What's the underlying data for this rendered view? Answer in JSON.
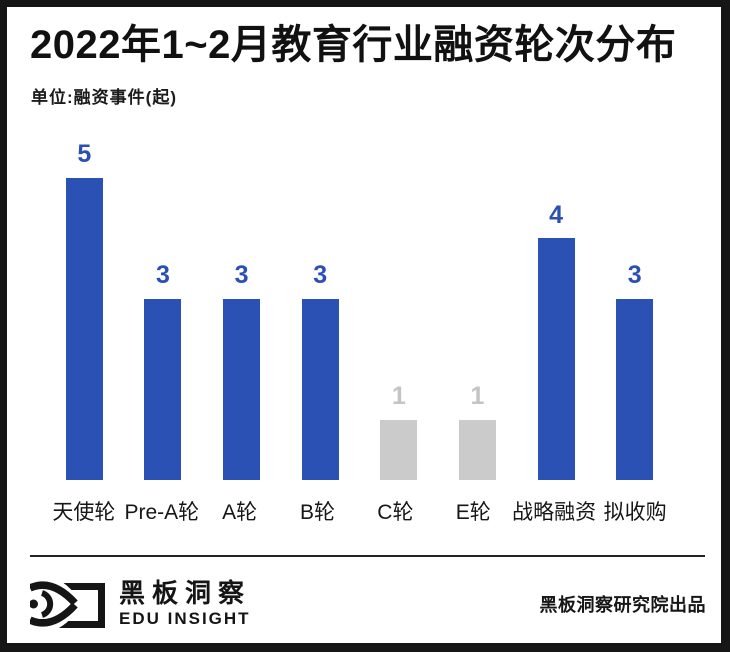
{
  "header": {
    "title": "2022年1~2月教育行业融资轮次分布",
    "unit_label": "单位:融资事件(起)"
  },
  "chart_data": {
    "type": "bar",
    "title": "2022年1~2月教育行业融资轮次分布",
    "ylabel": "融资事件(起)",
    "xlabel": "",
    "categories": [
      "天使轮",
      "Pre-A轮",
      "A轮",
      "B轮",
      "C轮",
      "E轮",
      "战略融资",
      "拟收购"
    ],
    "values": [
      5,
      3,
      3,
      3,
      1,
      1,
      4,
      3
    ],
    "emphasis": [
      "blue",
      "blue",
      "blue",
      "blue",
      "gray",
      "gray",
      "blue",
      "blue"
    ],
    "ylim": [
      0,
      5
    ],
    "grid": false,
    "legend": "none",
    "value_labels_shown": true,
    "bar_color_blue": "#2b51b5",
    "bar_color_gray": "#cbcbcb",
    "value_label_color_blue": "#2b4fb3",
    "value_label_color_gray": "#c4c4c6"
  },
  "footer": {
    "logo_icon": "eye-logo",
    "brand_name": "黑板洞察",
    "brand_subtitle": "EDU INSIGHT",
    "credit": "黑板洞察研究院出品"
  },
  "colors": {
    "frame": "#161616",
    "background": "#ffffff",
    "title_text": "#111111"
  }
}
